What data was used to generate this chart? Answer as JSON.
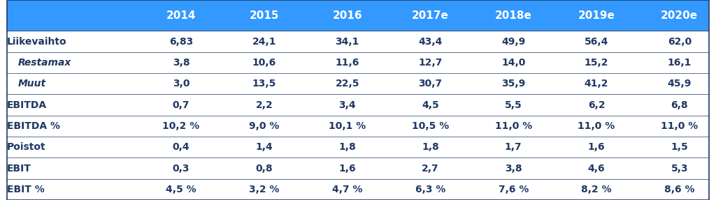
{
  "header_bg": "#3399FF",
  "header_text_color": "#FFFFFF",
  "body_bg": "#FFFFFF",
  "row_label_color": "#1F3864",
  "data_color": "#1F3864",
  "table_border_color": "#1F3864",
  "columns": [
    "",
    "2014",
    "2015",
    "2016",
    "2017e",
    "2018e",
    "2019e",
    "2020e"
  ],
  "rows": [
    {
      "label": "Liikevaihto",
      "italic": false,
      "indent": false,
      "values": [
        "6,83",
        "24,1",
        "34,1",
        "43,4",
        "49,9",
        "56,4",
        "62,0"
      ]
    },
    {
      "label": "Restamax",
      "italic": true,
      "indent": true,
      "values": [
        "3,8",
        "10,6",
        "11,6",
        "12,7",
        "14,0",
        "15,2",
        "16,1"
      ]
    },
    {
      "label": "Muut",
      "italic": true,
      "indent": true,
      "values": [
        "3,0",
        "13,5",
        "22,5",
        "30,7",
        "35,9",
        "41,2",
        "45,9"
      ]
    },
    {
      "label": "EBITDA",
      "italic": false,
      "indent": false,
      "values": [
        "0,7",
        "2,2",
        "3,4",
        "4,5",
        "5,5",
        "6,2",
        "6,8"
      ]
    },
    {
      "label": "EBITDA %",
      "italic": false,
      "indent": false,
      "values": [
        "10,2 %",
        "9,0 %",
        "10,1 %",
        "10,5 %",
        "11,0 %",
        "11,0 %",
        "11,0 %"
      ]
    },
    {
      "label": "Poistot",
      "italic": false,
      "indent": false,
      "values": [
        "0,4",
        "1,4",
        "1,8",
        "1,8",
        "1,7",
        "1,6",
        "1,5"
      ]
    },
    {
      "label": "EBIT",
      "italic": false,
      "indent": false,
      "values": [
        "0,3",
        "0,8",
        "1,6",
        "2,7",
        "3,8",
        "4,6",
        "5,3"
      ]
    },
    {
      "label": "EBIT %",
      "italic": false,
      "indent": false,
      "values": [
        "4,5 %",
        "3,2 %",
        "4,7 %",
        "6,3 %",
        "7,6 %",
        "8,2 %",
        "8,6 %"
      ]
    }
  ],
  "header_font_size": 11,
  "body_font_size": 10,
  "figwidth": 10.24,
  "figheight": 2.87,
  "dpi": 100
}
